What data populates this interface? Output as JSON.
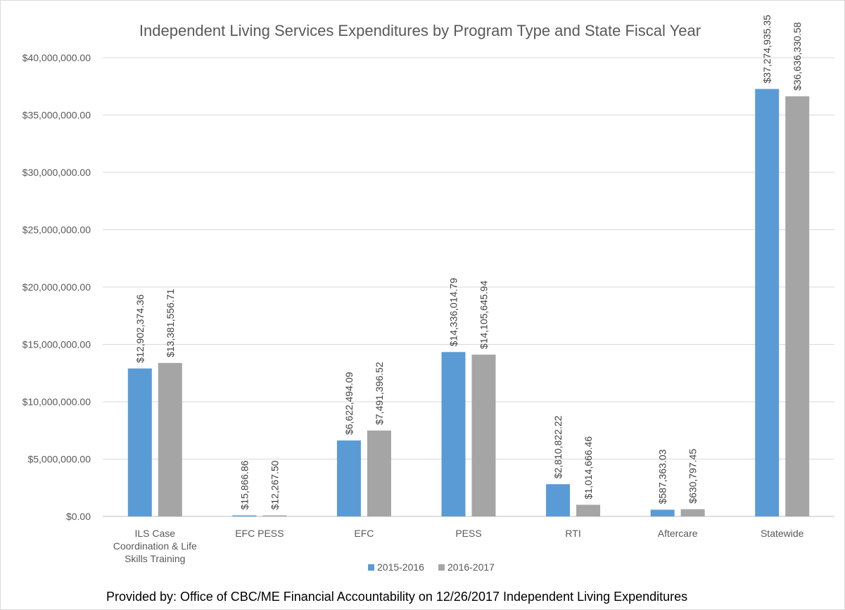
{
  "chart_data": {
    "type": "bar",
    "title": "Independent Living Services Expenditures by Program Type and State Fiscal Year",
    "categories": [
      [
        "ILS Case",
        "Coordination & Life",
        "Skills Training"
      ],
      [
        "EFC PESS"
      ],
      [
        "EFC"
      ],
      [
        "PESS"
      ],
      [
        "RTI"
      ],
      [
        "Aftercare"
      ],
      [
        "Statewide"
      ]
    ],
    "series": [
      {
        "name": "2015-2016",
        "color": "#5b9bd5",
        "values": [
          12902374.36,
          15866.86,
          6622494.09,
          14336014.79,
          2810822.22,
          587363.03,
          37274935.35
        ],
        "labels": [
          "$12,902,374.36",
          "$15,866.86",
          "$6,622,494.09",
          "$14,336,014.79",
          "$2,810,822.22",
          "$587,363.03",
          "$37,274,935.35"
        ]
      },
      {
        "name": "2016-2017",
        "color": "#a5a5a5",
        "values": [
          13381556.71,
          12267.5,
          7491396.52,
          14105645.94,
          1014666.46,
          630797.45,
          36636330.58
        ],
        "labels": [
          "$13,381,556.71",
          "$12,267.50",
          "$7,491,396.52",
          "$14,105,645.94",
          "$1,014,666.46",
          "$630,797.45",
          "$36,636,330.58"
        ]
      }
    ],
    "ylim": [
      0,
      40000000
    ],
    "yticks": [
      0,
      5000000,
      10000000,
      15000000,
      20000000,
      25000000,
      30000000,
      35000000,
      40000000
    ],
    "ytick_labels": [
      "$0.00",
      "$5,000,000.00",
      "$10,000,000.00",
      "$15,000,000.00",
      "$20,000,000.00",
      "$25,000,000.00",
      "$30,000,000.00",
      "$35,000,000.00",
      "$40,000,000.00"
    ],
    "grid": true,
    "legend_position": "bottom",
    "xlabel": "",
    "ylabel": ""
  },
  "footer": "Provided by: Office of CBC/ME Financial Accountability on 12/26/2017 Independent Living Expenditures"
}
